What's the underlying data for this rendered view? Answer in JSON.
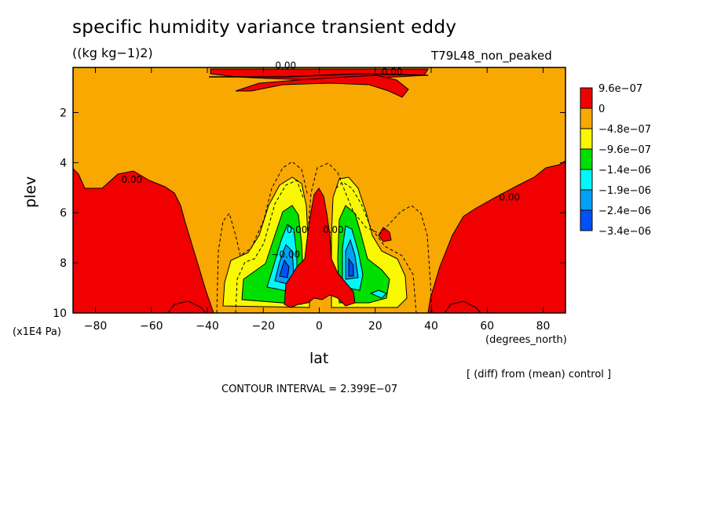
{
  "chart_data": {
    "type": "contour",
    "title": "specific humidity variance transient eddy",
    "units": "((kg kg−1)2)",
    "experiment": "T79L48_non_peaked",
    "xlabel": "lat",
    "xunit": "(degrees_north)",
    "ylabel": "plev",
    "yunit": "(x1E4 Pa)",
    "xlim": [
      -88,
      88
    ],
    "ylim": [
      10,
      0.2
    ],
    "xticks": [
      "−80",
      "−60",
      "−40",
      "−20",
      "0",
      "20",
      "40",
      "60",
      "80"
    ],
    "xtick_values": [
      -80,
      -60,
      -40,
      -20,
      0,
      20,
      40,
      60,
      80
    ],
    "yticks": [
      "2",
      "4",
      "6",
      "8",
      "10"
    ],
    "ytick_values": [
      2,
      4,
      6,
      8,
      10
    ],
    "legend": [
      "9.6e−07",
      "0",
      "−4.8e−07",
      "−9.6e−07",
      "−1.4e−06",
      "−1.9e−06",
      "−2.4e−06",
      "−3.4e−06"
    ],
    "level_colors": [
      "#f00000",
      "#f8a800",
      "#f8f800",
      "#00e000",
      "#00f8f8",
      "#00a0f8",
      "#0050f8"
    ],
    "contour_labels": [
      {
        "text": "0.00",
        "x": -67,
        "y": 4.8
      },
      {
        "text": "0.00",
        "x": 68,
        "y": 5.5
      },
      {
        "text": "0.00",
        "x": -12,
        "y": 0.25
      },
      {
        "text": "0.00",
        "x": 26,
        "y": 0.5
      },
      {
        "text": "0.00",
        "x": 5,
        "y": 6.8
      },
      {
        "text": "0.00",
        "x": -8,
        "y": 6.8
      },
      {
        "text": "−0.00",
        "x": -12,
        "y": 7.8
      }
    ],
    "contour_interval": "CONTOUR INTERVAL = 2.399E−07",
    "note": "[ (diff) from (mean) control ]"
  }
}
